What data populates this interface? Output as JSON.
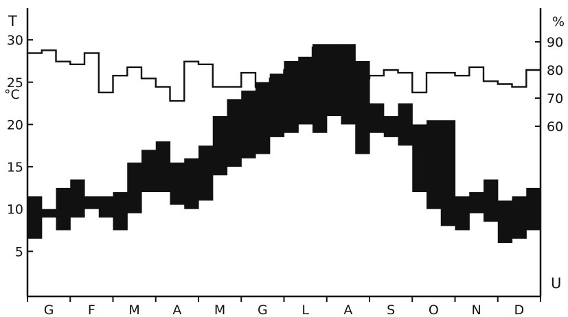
{
  "chart_data": {
    "type": "climate-diagram",
    "left_axis": {
      "top_label": "T",
      "unit_label": "°C",
      "ticks": [
        5,
        10,
        15,
        20,
        25,
        30
      ],
      "range": [
        0,
        33
      ]
    },
    "right_axis": {
      "unit_label": "%",
      "ticks": [
        60,
        70,
        80,
        90
      ],
      "bottom_label": "U",
      "range_at_humidity_band": [
        70,
        90
      ]
    },
    "x_categories": [
      "G",
      "F",
      "M",
      "A",
      "M",
      "G",
      "L",
      "A",
      "S",
      "O",
      "N",
      "D"
    ],
    "temperature_bands": [
      {
        "min": 6.5,
        "max": 11.5
      },
      {
        "min": 9.0,
        "max": 10.0
      },
      {
        "min": 7.5,
        "max": 12.5
      },
      {
        "min": 9.0,
        "max": 13.5
      },
      {
        "min": 10.0,
        "max": 11.5
      },
      {
        "min": 9.0,
        "max": 11.5
      },
      {
        "min": 7.5,
        "max": 12.0
      },
      {
        "min": 9.5,
        "max": 15.5
      },
      {
        "min": 12.0,
        "max": 17.0
      },
      {
        "min": 12.0,
        "max": 18.0
      },
      {
        "min": 10.5,
        "max": 15.5
      },
      {
        "min": 10.0,
        "max": 16.0
      },
      {
        "min": 11.0,
        "max": 17.5
      },
      {
        "min": 14.0,
        "max": 21.0
      },
      {
        "min": 15.0,
        "max": 23.0
      },
      {
        "min": 16.0,
        "max": 24.0
      },
      {
        "min": 16.5,
        "max": 25.0
      },
      {
        "min": 18.5,
        "max": 26.0
      },
      {
        "min": 19.0,
        "max": 27.5
      },
      {
        "min": 20.0,
        "max": 28.0
      },
      {
        "min": 19.0,
        "max": 29.5
      },
      {
        "min": 21.0,
        "max": 29.5
      },
      {
        "min": 20.0,
        "max": 29.5
      },
      {
        "min": 16.5,
        "max": 27.5
      },
      {
        "min": 19.0,
        "max": 22.5
      },
      {
        "min": 18.5,
        "max": 21.0
      },
      {
        "min": 17.5,
        "max": 22.5
      },
      {
        "min": 12.0,
        "max": 20.0
      },
      {
        "min": 10.0,
        "max": 20.5
      },
      {
        "min": 8.0,
        "max": 20.5
      },
      {
        "min": 7.5,
        "max": 11.5
      },
      {
        "min": 9.5,
        "max": 12.0
      },
      {
        "min": 8.5,
        "max": 13.5
      },
      {
        "min": 6.0,
        "max": 11.0
      },
      {
        "min": 6.5,
        "max": 11.5
      },
      {
        "min": 7.5,
        "max": 12.5
      }
    ],
    "humidity": [
      86,
      87,
      83,
      82,
      86,
      72,
      78,
      81,
      77,
      74,
      69,
      83,
      82,
      74,
      74,
      79,
      74,
      77,
      80,
      81,
      88,
      85,
      74,
      77,
      78,
      80,
      79,
      72,
      79,
      79,
      78,
      81,
      76,
      75,
      74,
      80
    ],
    "grid": false,
    "legend": "none"
  }
}
